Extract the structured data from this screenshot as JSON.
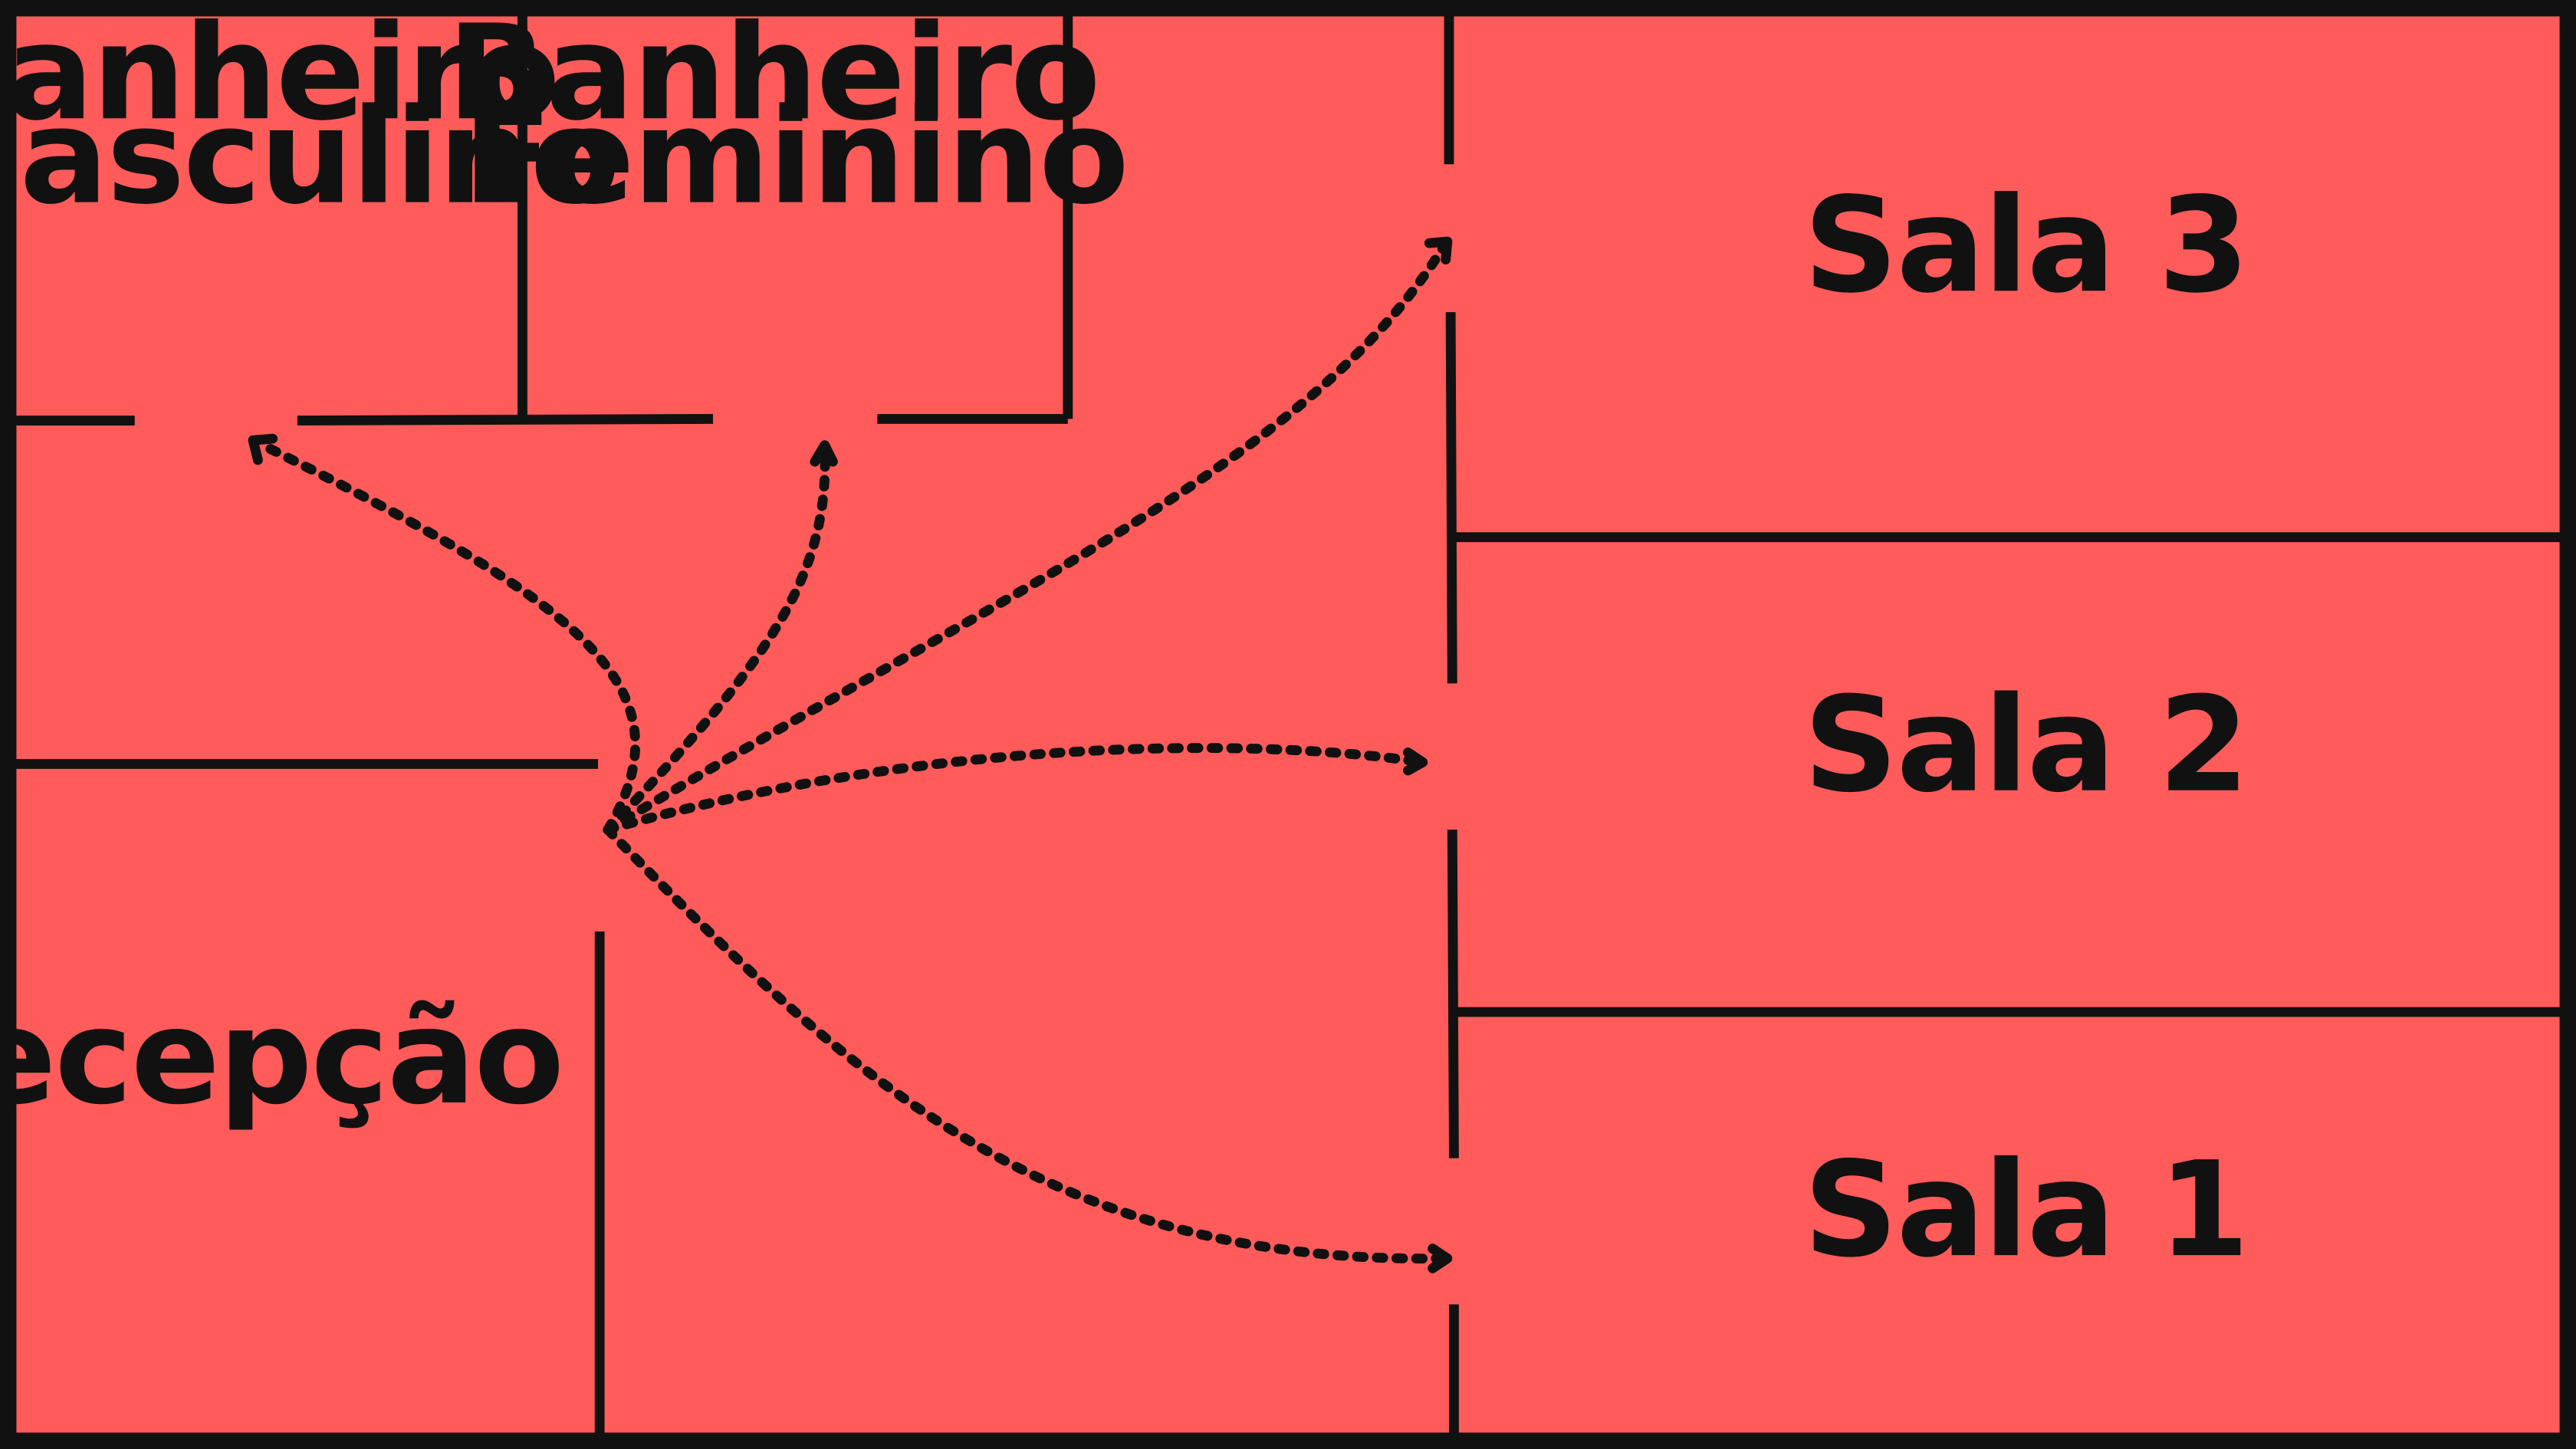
{
  "colors": {
    "background": "#ff5b5b",
    "lines": "#111111"
  },
  "rooms": {
    "banheiro_masculino": [
      "Banheiro",
      "Masculino"
    ],
    "banheiro_feminino": [
      "Banheiro",
      "Feminino"
    ],
    "recepcao": "Recepção",
    "sala_3": "Sala 3",
    "sala_2": "Sala 2",
    "sala_1": "Sala 1"
  },
  "routes": [
    {
      "from": "Recepção",
      "to": "Banheiro Masculino"
    },
    {
      "from": "Recepção",
      "to": "Banheiro Feminino"
    },
    {
      "from": "Recepção",
      "to": "Sala 3"
    },
    {
      "from": "Recepção",
      "to": "Sala 2"
    },
    {
      "from": "Recepção",
      "to": "Sala 1"
    }
  ]
}
